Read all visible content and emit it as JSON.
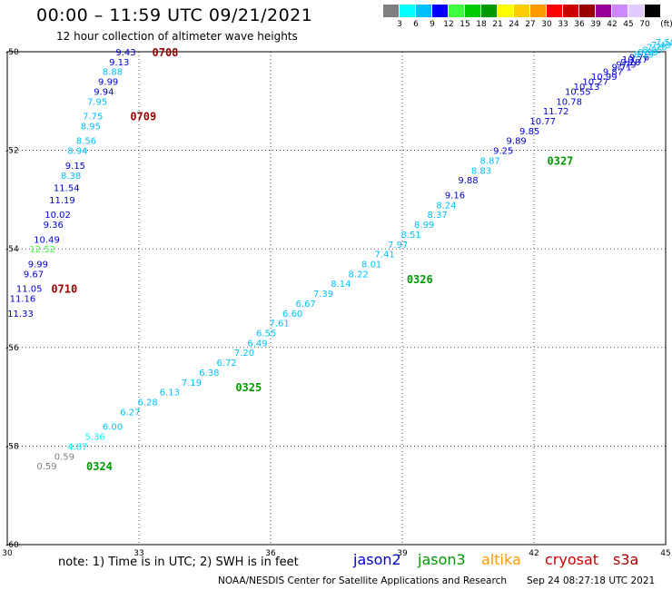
{
  "header": {
    "title": "00:00 – 11:59 UTC 09/21/2021",
    "subtitle": "12 hour collection of altimeter wave heights"
  },
  "colorbar": {
    "unit": "(ft)",
    "colors": [
      "#7f7f7f",
      "#00ffff",
      "#00bfff",
      "#0000ff",
      "#40ff40",
      "#00cc00",
      "#009900",
      "#ffff00",
      "#ffcc00",
      "#ff9900",
      "#ff0000",
      "#cc0000",
      "#990000",
      "#990099",
      "#cc88ff",
      "#e0ccff",
      "#000000"
    ],
    "labels": [
      "3",
      "6",
      "9",
      "12",
      "15",
      "18",
      "21",
      "24",
      "27",
      "30",
      "33",
      "36",
      "39",
      "42",
      "45",
      "70"
    ]
  },
  "footer": {
    "note": "note:  1) Time is in UTC;  2) SWH is in feet",
    "satellites": [
      {
        "name": "jason2",
        "color": "#0000cc"
      },
      {
        "name": "jason3",
        "color": "#009900"
      },
      {
        "name": "altika",
        "color": "#ff9900"
      },
      {
        "name": "cryosat",
        "color": "#cc0000"
      },
      {
        "name": "s3a",
        "color": "#aa0000"
      }
    ],
    "credit": "NOAA/NESDIS Center for Satellite Applications and Research",
    "timestamp": "Sep 24 08:27:18 UTC 2021"
  },
  "axes": {
    "xticks": [
      "30",
      "33",
      "36",
      "39",
      "42",
      "45"
    ],
    "yticks": [
      "-50",
      "-52",
      "-54",
      "-56",
      "-58",
      "-60"
    ]
  },
  "chart_data": {
    "type": "scatter",
    "x_range": [
      30,
      45
    ],
    "y_range": [
      -60,
      -50
    ],
    "grid": true,
    "time_labels": [
      {
        "text": "0708",
        "lon": 33.3,
        "lat": -50.0,
        "color": "#990000"
      },
      {
        "text": "0709",
        "lon": 32.8,
        "lat": -51.3,
        "color": "#990000"
      },
      {
        "text": "0710",
        "lon": 31.0,
        "lat": -54.8,
        "color": "#990000"
      },
      {
        "text": "0324",
        "lon": 31.8,
        "lat": -58.4,
        "color": "#009900"
      },
      {
        "text": "0325",
        "lon": 35.2,
        "lat": -56.8,
        "color": "#009900"
      },
      {
        "text": "0326",
        "lon": 39.1,
        "lat": -54.6,
        "color": "#009900"
      },
      {
        "text": "0327",
        "lon": 42.3,
        "lat": -52.2,
        "color": "#009900"
      }
    ],
    "points": [
      {
        "v": "9.43",
        "lon": 32.7,
        "lat": -50.0,
        "c": "#0000cc"
      },
      {
        "v": "9.13",
        "lon": 32.55,
        "lat": -50.2,
        "c": "#0000cc"
      },
      {
        "v": "8.88",
        "lon": 32.4,
        "lat": -50.4,
        "c": "#00bfff"
      },
      {
        "v": "9.99",
        "lon": 32.3,
        "lat": -50.6,
        "c": "#0000cc"
      },
      {
        "v": "9.94",
        "lon": 32.2,
        "lat": -50.8,
        "c": "#0000cc"
      },
      {
        "v": "7.95",
        "lon": 32.05,
        "lat": -51.0,
        "c": "#00bfff"
      },
      {
        "v": "7.75",
        "lon": 31.95,
        "lat": -51.3,
        "c": "#00bfff"
      },
      {
        "v": "8.95",
        "lon": 31.9,
        "lat": -51.5,
        "c": "#00bfff"
      },
      {
        "v": "8.56",
        "lon": 31.8,
        "lat": -51.8,
        "c": "#00bfff"
      },
      {
        "v": "8.94",
        "lon": 31.6,
        "lat": -52.0,
        "c": "#00bfff"
      },
      {
        "v": "9.15",
        "lon": 31.55,
        "lat": -52.3,
        "c": "#0000cc"
      },
      {
        "v": "8.38",
        "lon": 31.45,
        "lat": -52.5,
        "c": "#00bfff"
      },
      {
        "v": "11.54",
        "lon": 31.35,
        "lat": -52.75,
        "c": "#0000cc"
      },
      {
        "v": "11.19",
        "lon": 31.25,
        "lat": -53.0,
        "c": "#0000cc"
      },
      {
        "v": "10.02",
        "lon": 31.15,
        "lat": -53.3,
        "c": "#0000cc"
      },
      {
        "v": "9.36",
        "lon": 31.05,
        "lat": -53.5,
        "c": "#0000cc"
      },
      {
        "v": "10.49",
        "lon": 30.9,
        "lat": -53.8,
        "c": "#0000cc"
      },
      {
        "v": "12.52",
        "lon": 30.8,
        "lat": -54.0,
        "c": "#40ff40"
      },
      {
        "v": "9.99",
        "lon": 30.7,
        "lat": -54.3,
        "c": "#0000cc"
      },
      {
        "v": "9.67",
        "lon": 30.6,
        "lat": -54.5,
        "c": "#0000cc"
      },
      {
        "v": "11.05",
        "lon": 30.5,
        "lat": -54.8,
        "c": "#0000cc"
      },
      {
        "v": "11.16",
        "lon": 30.35,
        "lat": -55.0,
        "c": "#0000cc"
      },
      {
        "v": "11.33",
        "lon": 30.3,
        "lat": -55.3,
        "c": "#0000cc"
      },
      {
        "v": "0.59",
        "lon": 31.3,
        "lat": -58.2,
        "c": "#7f7f7f"
      },
      {
        "v": "0.59",
        "lon": 30.9,
        "lat": -58.4,
        "c": "#7f7f7f"
      },
      {
        "v": "4.87",
        "lon": 31.6,
        "lat": -58.0,
        "c": "#00ffff"
      },
      {
        "v": "5.36",
        "lon": 32.0,
        "lat": -57.8,
        "c": "#00ffff"
      },
      {
        "v": "6.00",
        "lon": 32.4,
        "lat": -57.6,
        "c": "#00bfff"
      },
      {
        "v": "6.27",
        "lon": 32.8,
        "lat": -57.3,
        "c": "#00bfff"
      },
      {
        "v": "6.28",
        "lon": 33.2,
        "lat": -57.1,
        "c": "#00bfff"
      },
      {
        "v": "6.13",
        "lon": 33.7,
        "lat": -56.9,
        "c": "#00bfff"
      },
      {
        "v": "7.19",
        "lon": 34.2,
        "lat": -56.7,
        "c": "#00bfff"
      },
      {
        "v": "6.38",
        "lon": 34.6,
        "lat": -56.5,
        "c": "#00bfff"
      },
      {
        "v": "6.72",
        "lon": 35.0,
        "lat": -56.3,
        "c": "#00bfff"
      },
      {
        "v": "7.20",
        "lon": 35.4,
        "lat": -56.1,
        "c": "#00bfff"
      },
      {
        "v": "6.49",
        "lon": 35.7,
        "lat": -55.9,
        "c": "#00bfff"
      },
      {
        "v": "6.55",
        "lon": 35.9,
        "lat": -55.7,
        "c": "#00bfff"
      },
      {
        "v": "7.61",
        "lon": 36.2,
        "lat": -55.5,
        "c": "#00bfff"
      },
      {
        "v": "6.60",
        "lon": 36.5,
        "lat": -55.3,
        "c": "#00bfff"
      },
      {
        "v": "6.67",
        "lon": 36.8,
        "lat": -55.1,
        "c": "#00bfff"
      },
      {
        "v": "7.39",
        "lon": 37.2,
        "lat": -54.9,
        "c": "#00bfff"
      },
      {
        "v": "8.14",
        "lon": 37.6,
        "lat": -54.7,
        "c": "#00bfff"
      },
      {
        "v": "8.22",
        "lon": 38.0,
        "lat": -54.5,
        "c": "#00bfff"
      },
      {
        "v": "8.01",
        "lon": 38.3,
        "lat": -54.3,
        "c": "#00bfff"
      },
      {
        "v": "7.41",
        "lon": 38.6,
        "lat": -54.1,
        "c": "#00bfff"
      },
      {
        "v": "7.97",
        "lon": 38.9,
        "lat": -53.9,
        "c": "#00bfff"
      },
      {
        "v": "8.51",
        "lon": 39.2,
        "lat": -53.7,
        "c": "#00bfff"
      },
      {
        "v": "8.99",
        "lon": 39.5,
        "lat": -53.5,
        "c": "#00bfff"
      },
      {
        "v": "8.37",
        "lon": 39.8,
        "lat": -53.3,
        "c": "#00bfff"
      },
      {
        "v": "8.24",
        "lon": 40.0,
        "lat": -53.1,
        "c": "#00bfff"
      },
      {
        "v": "9.16",
        "lon": 40.2,
        "lat": -52.9,
        "c": "#0000cc"
      },
      {
        "v": "9.88",
        "lon": 40.5,
        "lat": -52.6,
        "c": "#0000cc"
      },
      {
        "v": "8.83",
        "lon": 40.8,
        "lat": -52.4,
        "c": "#00bfff"
      },
      {
        "v": "8.87",
        "lon": 41.0,
        "lat": -52.2,
        "c": "#00bfff"
      },
      {
        "v": "9.25",
        "lon": 41.3,
        "lat": -52.0,
        "c": "#0000cc"
      },
      {
        "v": "9.89",
        "lon": 41.6,
        "lat": -51.8,
        "c": "#0000cc"
      },
      {
        "v": "9.85",
        "lon": 41.9,
        "lat": -51.6,
        "c": "#0000cc"
      },
      {
        "v": "10.77",
        "lon": 42.2,
        "lat": -51.4,
        "c": "#0000cc"
      },
      {
        "v": "11.72",
        "lon": 42.5,
        "lat": -51.2,
        "c": "#0000cc"
      },
      {
        "v": "10.78",
        "lon": 42.8,
        "lat": -51.0,
        "c": "#0000cc"
      },
      {
        "v": "10.55",
        "lon": 43.0,
        "lat": -50.8,
        "c": "#0000cc"
      },
      {
        "v": "10.13",
        "lon": 43.2,
        "lat": -50.7,
        "c": "#0000cc"
      },
      {
        "v": "10.27",
        "lon": 43.4,
        "lat": -50.6,
        "c": "#0000cc"
      },
      {
        "v": "10.99",
        "lon": 43.6,
        "lat": -50.5,
        "c": "#0000cc"
      },
      {
        "v": "9.87",
        "lon": 43.8,
        "lat": -50.4,
        "c": "#0000cc"
      },
      {
        "v": "9.71",
        "lon": 44.0,
        "lat": -50.3,
        "c": "#0000cc"
      },
      {
        "v": "9.79",
        "lon": 44.1,
        "lat": -50.25,
        "c": "#0000cc"
      },
      {
        "v": "9.20",
        "lon": 44.2,
        "lat": -50.2,
        "c": "#0000cc"
      },
      {
        "v": "10.27",
        "lon": 44.3,
        "lat": -50.15,
        "c": "#0000cc"
      },
      {
        "v": "9.76",
        "lon": 44.4,
        "lat": -50.1,
        "c": "#0000cc"
      },
      {
        "v": "8.19",
        "lon": 44.5,
        "lat": -50.05,
        "c": "#00bfff"
      },
      {
        "v": "8.99",
        "lon": 44.6,
        "lat": -50.0,
        "c": "#00bfff"
      },
      {
        "v": "8.05",
        "lon": 44.7,
        "lat": -49.95,
        "c": "#00bfff"
      },
      {
        "v": "7.70",
        "lon": 44.8,
        "lat": -49.9,
        "c": "#00bfff"
      },
      {
        "v": "7.49",
        "lon": 44.9,
        "lat": -49.85,
        "c": "#00bfff"
      },
      {
        "v": "7.58",
        "lon": 45.0,
        "lat": -49.8,
        "c": "#00bfff"
      }
    ]
  }
}
